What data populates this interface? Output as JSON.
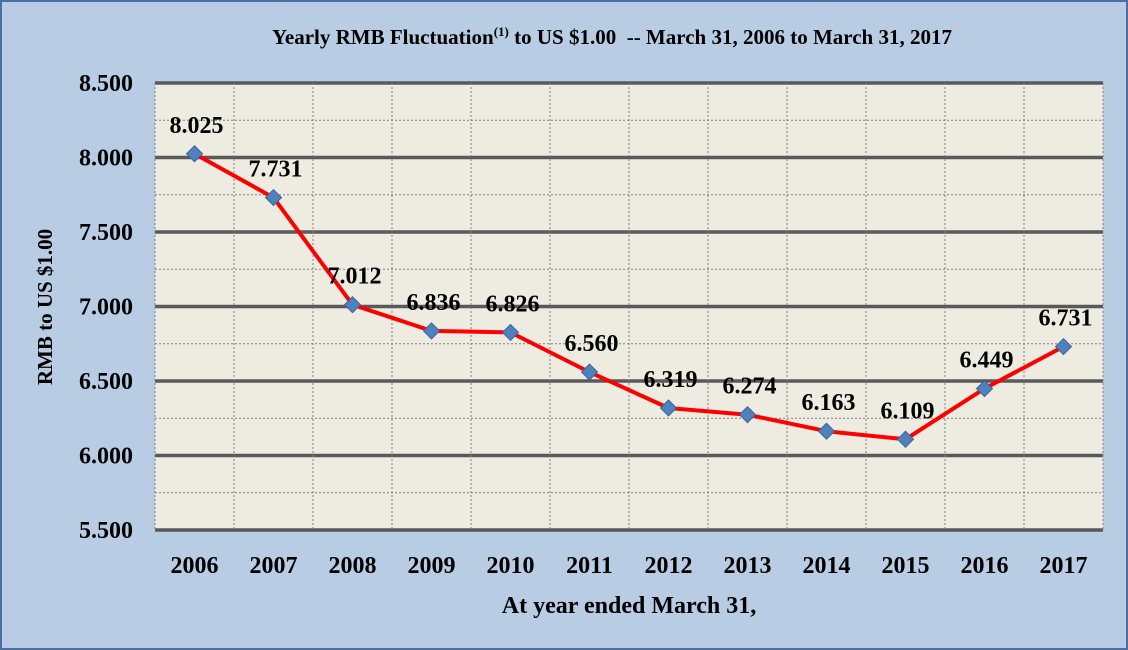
{
  "chart_data": {
    "type": "line",
    "title": "Yearly RMB Fluctuation",
    "title_superscript": "(1)",
    "title_rest": " to US $1.00  -- March 31, 2006 to March 31, 2017",
    "xlabel": "At year ended March 31,",
    "ylabel": "RMB to US $1.00",
    "categories": [
      "2006",
      "2007",
      "2008",
      "2009",
      "2010",
      "2011",
      "2012",
      "2013",
      "2014",
      "2015",
      "2016",
      "2017"
    ],
    "series": [
      {
        "values": [
          8.025,
          7.731,
          7.012,
          6.836,
          6.826,
          6.56,
          6.319,
          6.274,
          6.163,
          6.109,
          6.449,
          6.731
        ],
        "labels": [
          "8.025",
          "7.731",
          "7.012",
          "6.836",
          "6.826",
          "6.560",
          "6.319",
          "6.274",
          "6.163",
          "6.109",
          "6.449",
          "6.731"
        ]
      }
    ],
    "ylim": [
      5.5,
      8.5
    ],
    "y_ticks": [
      "5.500",
      "6.000",
      "6.500",
      "7.000",
      "7.500",
      "8.000",
      "8.500"
    ],
    "y_tick_values": [
      5.5,
      6.0,
      6.5,
      7.0,
      7.5,
      8.0,
      8.5
    ],
    "grid": "major and minor horizontal",
    "legend": "none",
    "colors": {
      "background": "#b8cce4",
      "plot_area": "#eeece1",
      "line": "#ff0000",
      "marker": "#4f81bd",
      "major_grid": "#595959",
      "minor_grid": "#7f7f7f",
      "axis_text": "#000000"
    }
  }
}
